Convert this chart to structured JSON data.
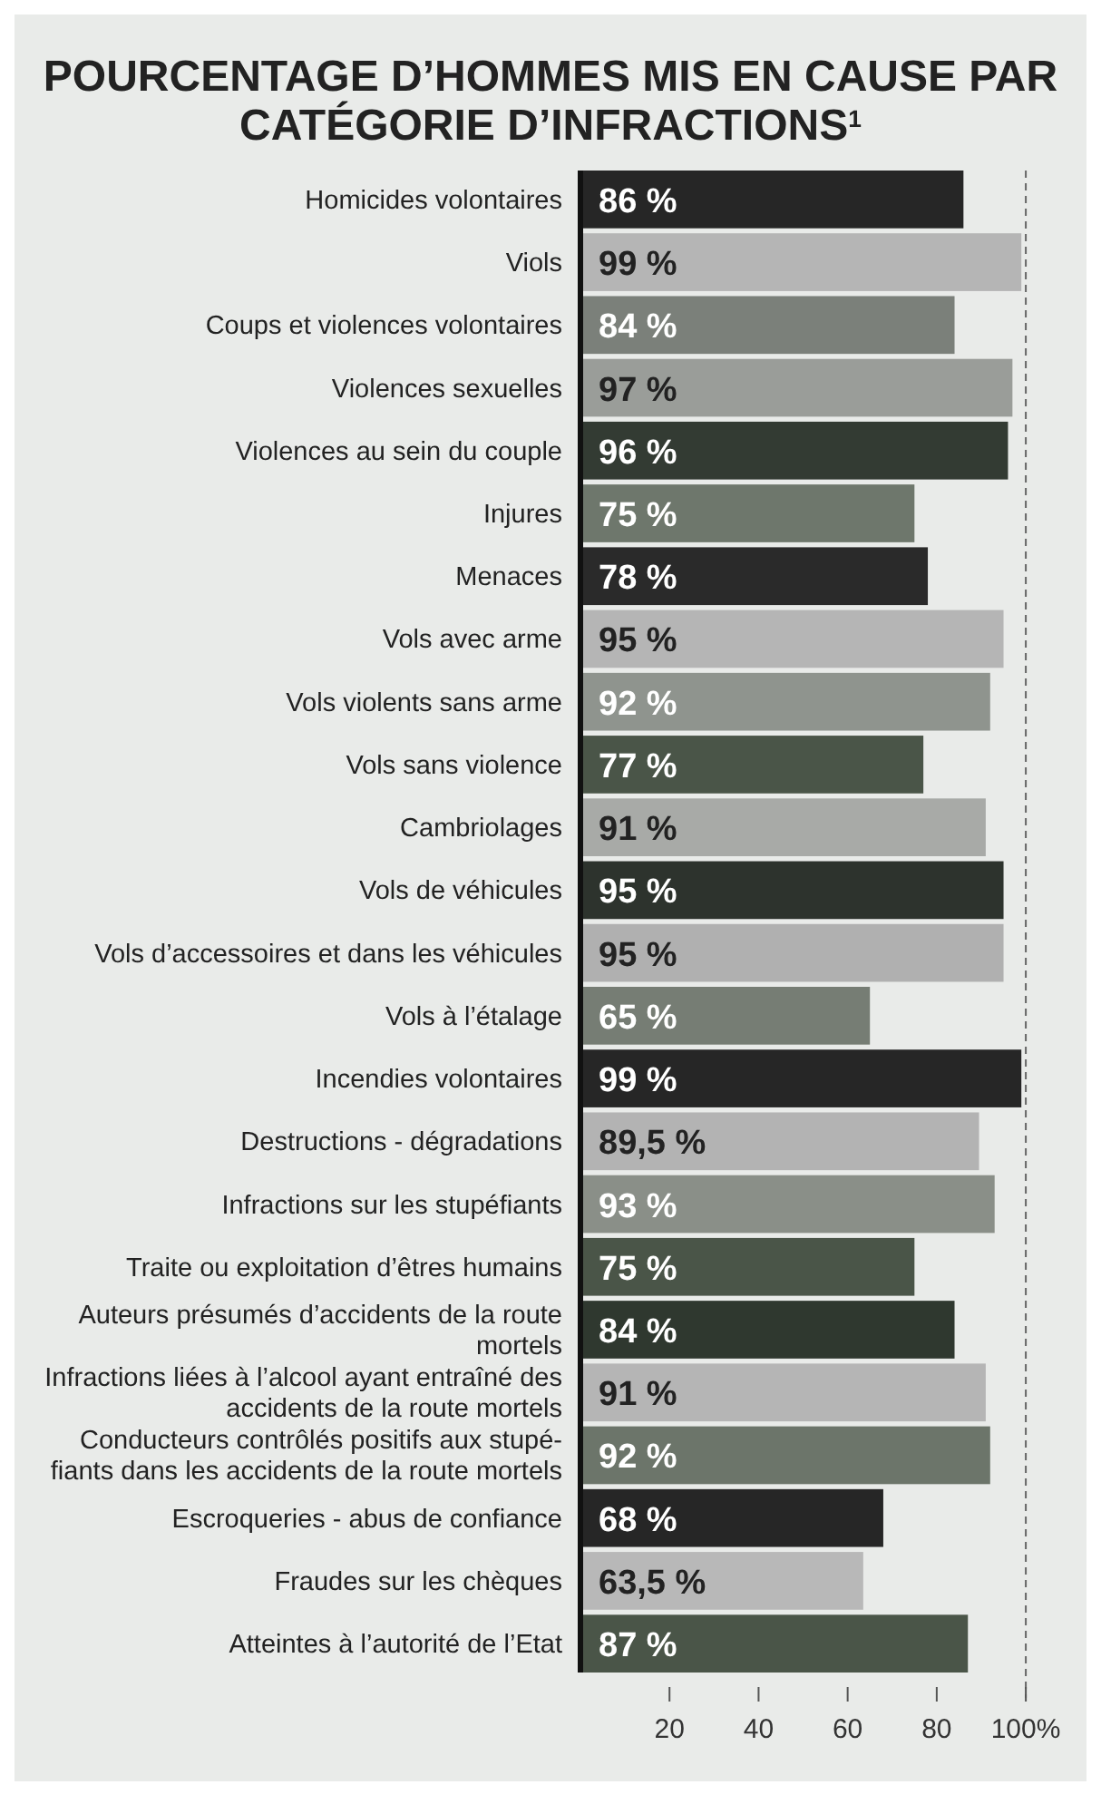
{
  "chart_data": {
    "type": "bar",
    "orientation": "horizontal",
    "title": "POURCENTAGE D’HOMMES MIS EN CAUSE PAR CATÉGORIE D’INFRACTIONS$^{1}$",
    "categories": [
      "Homicides volontaires",
      "Viols",
      "Coups et violences volontaires",
      "Violences sexuelles",
      "Violences au sein du couple",
      "Injures",
      "Menaces",
      "Vols avec arme",
      "Vols violents sans arme",
      "Vols sans violence",
      "Cambriolages",
      "Vols de véhicules",
      "Vols d’accessoires et dans les véhicules",
      "Vols à l’étalage",
      "Incendies volontaires",
      "Destructions - dégradations",
      "Infractions sur les stupéfiants",
      "Traite ou exploitation d’êtres humains",
      "Auteurs présumés d’accidents de la route mortels",
      "Infractions liées à l’alcool ayant entraîné des accidents de la route mortels",
      "Conducteurs contrôlés positifs aux stupé- fiants dans les accidents de la route mortels",
      "Escroqueries - abus de confiance",
      "Fraudes sur les chèques",
      "Atteintes à l’autorité de l’Etat"
    ],
    "values": [
      86,
      99,
      84,
      97,
      96,
      75,
      78,
      95,
      92,
      77,
      91,
      95,
      95,
      65,
      99,
      89.5,
      93,
      75,
      84,
      91,
      92,
      68,
      63.5,
      87
    ],
    "value_labels": [
      "86 %",
      "99 %",
      "84 %",
      "97 %",
      "96 %",
      "75 %",
      "78 %",
      "95 %",
      "92 %",
      "77 %",
      "91 %",
      "95 %",
      "95 %",
      "65 %",
      "99 %",
      "89,5 %",
      "93 %",
      "75 %",
      "84 %",
      "91 %",
      "92 %",
      "68 %",
      "63,5 %",
      "87 %"
    ],
    "colors": [
      "#262626",
      "#b5b5b5",
      "#7b807a",
      "#9a9d99",
      "#333b33",
      "#6e776c",
      "#2a2a2a",
      "#b5b5b5",
      "#8f948e",
      "#4a5548",
      "#a8aaa7",
      "#2d332d",
      "#b0b0b0",
      "#767d74",
      "#262626",
      "#b3b3b3",
      "#8a8f88",
      "#4a5548",
      "#2f382f",
      "#b5b5b5",
      "#6c756a",
      "#262626",
      "#b8b8b8",
      "#4a5548"
    ],
    "xlim": [
      0,
      101
    ],
    "xticks": [
      20,
      40,
      60,
      80,
      {
        "value": 100,
        "label": "100%"
      }
    ],
    "ref_lines": [
      {
        "axis": "x",
        "value": 100,
        "color": "#666666",
        "line_style": "dashed"
      }
    ]
  }
}
